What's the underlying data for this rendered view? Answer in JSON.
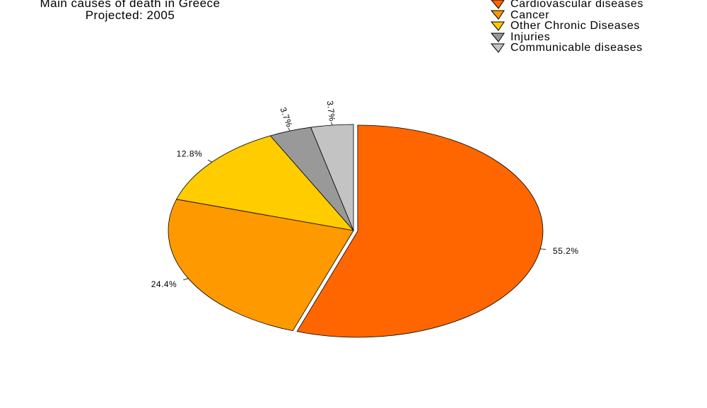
{
  "chart_data": {
    "type": "pie",
    "title": "Main causes of death in Greece",
    "subtitle": "Projected: 2005",
    "legend_position": "top-right",
    "slices": [
      {
        "name": "Cardiovascular diseases",
        "value": 55.2,
        "label": "55.2%",
        "color": "#ff6600",
        "exploded": true
      },
      {
        "name": "Cancer",
        "value": 24.4,
        "label": "24.4%",
        "color": "#ff9900",
        "exploded": false
      },
      {
        "name": "Other Chronic Diseases",
        "value": 12.8,
        "label": "12.8%",
        "color": "#ffcc00",
        "exploded": false
      },
      {
        "name": "Injuries",
        "value": 3.7,
        "label": "3.7%",
        "color": "#999999",
        "exploded": false
      },
      {
        "name": "Communicable diseases",
        "value": 3.7,
        "label": "3.7%",
        "color": "#c3c3c3",
        "exploded": false
      }
    ]
  }
}
